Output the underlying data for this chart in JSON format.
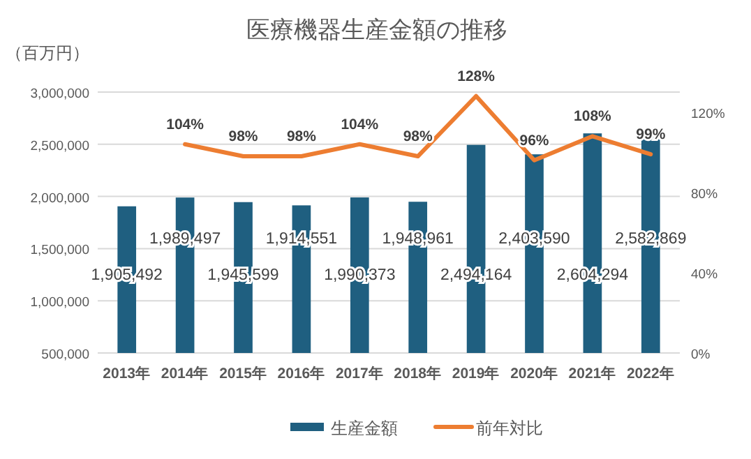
{
  "chart_data": {
    "type": "bar",
    "title": "医療機器生産金額の推移",
    "ylabel": "（百万円）",
    "categories": [
      "2013年",
      "2014年",
      "2015年",
      "2016年",
      "2017年",
      "2018年",
      "2019年",
      "2020年",
      "2021年",
      "2022年"
    ],
    "series": [
      {
        "name": "生産金額",
        "color": "#1f5f80",
        "values": [
          1905492,
          1989497,
          1945599,
          1914551,
          1990373,
          1948961,
          2494164,
          2403590,
          2604294,
          2582869
        ],
        "value_labels": [
          "1,905,492",
          "1,989,497",
          "1,945,599",
          "1,914,551",
          "1,990,373",
          "1,948,961",
          "2,494,164",
          "2,403,590",
          "2,604,294",
          "2,582,869"
        ]
      },
      {
        "name": "前年対比",
        "type": "line",
        "axis": "y2",
        "color": "#ed7d31",
        "values": [
          null,
          104,
          98,
          98,
          104,
          98,
          128,
          96,
          108,
          99
        ],
        "value_labels": [
          null,
          "104%",
          "98%",
          "98%",
          "104%",
          "98%",
          "128%",
          "96%",
          "108%",
          "99%"
        ]
      }
    ],
    "ylim": [
      500000,
      3000000
    ],
    "yticks": [
      {
        "value": 500000,
        "label": "500,000"
      },
      {
        "value": 1000000,
        "label": "1,000,000"
      },
      {
        "value": 1500000,
        "label": "1,500,000"
      },
      {
        "value": 2000000,
        "label": "2,000,000"
      },
      {
        "value": 2500000,
        "label": "2,500,000"
      },
      {
        "value": 3000000,
        "label": "3,000,000"
      }
    ],
    "y2lim": [
      0,
      130
    ],
    "y2ticks": [
      {
        "value": 0,
        "label": "0%"
      },
      {
        "value": 40,
        "label": "40%"
      },
      {
        "value": 80,
        "label": "80%"
      },
      {
        "value": 120,
        "label": "120%"
      }
    ],
    "grid": "y",
    "legend": "bottom"
  }
}
